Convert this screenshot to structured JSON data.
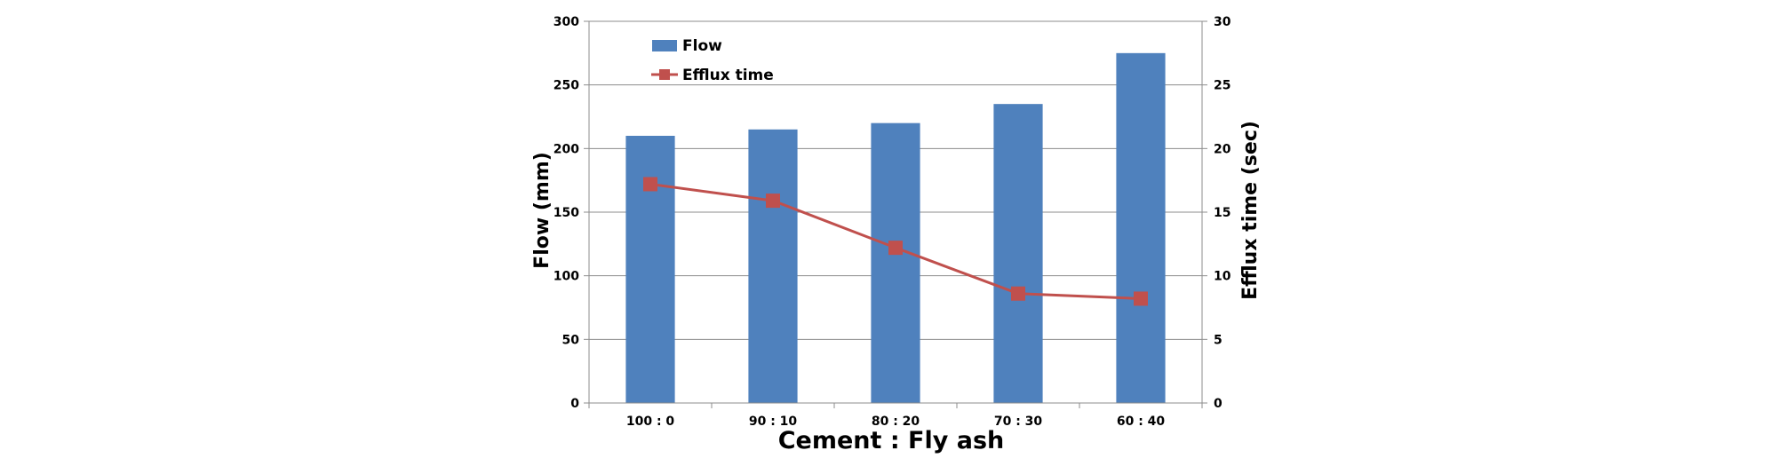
{
  "chart_data": {
    "type": "bar",
    "categories": [
      "100 : 0",
      "90 : 10",
      "80 : 20",
      "70 : 30",
      "60 : 40"
    ],
    "series": [
      {
        "name": "Flow",
        "type": "bar",
        "axis": "left",
        "values": [
          210,
          215,
          220,
          235,
          275
        ]
      },
      {
        "name": "Efflux time",
        "type": "line",
        "axis": "right",
        "values": [
          17.2,
          15.9,
          12.2,
          8.6,
          8.2
        ]
      }
    ],
    "xlabel": "Cement : Fly ash",
    "ylabel": "Flow (mm)",
    "y2label": "Efflux time (sec)",
    "ylim": [
      0,
      300
    ],
    "y2lim": [
      0,
      30
    ],
    "yticks": [
      "0",
      "50",
      "100",
      "150",
      "200",
      "250",
      "300"
    ],
    "y2ticks": [
      "0",
      "5",
      "10",
      "15",
      "20",
      "25",
      "30"
    ],
    "grid": true,
    "legend_position": "top-left",
    "colors": {
      "bar": "#4f81bd",
      "line": "#c0504d",
      "grid": "#8c8c8c",
      "axis": "#8c8c8c"
    }
  }
}
